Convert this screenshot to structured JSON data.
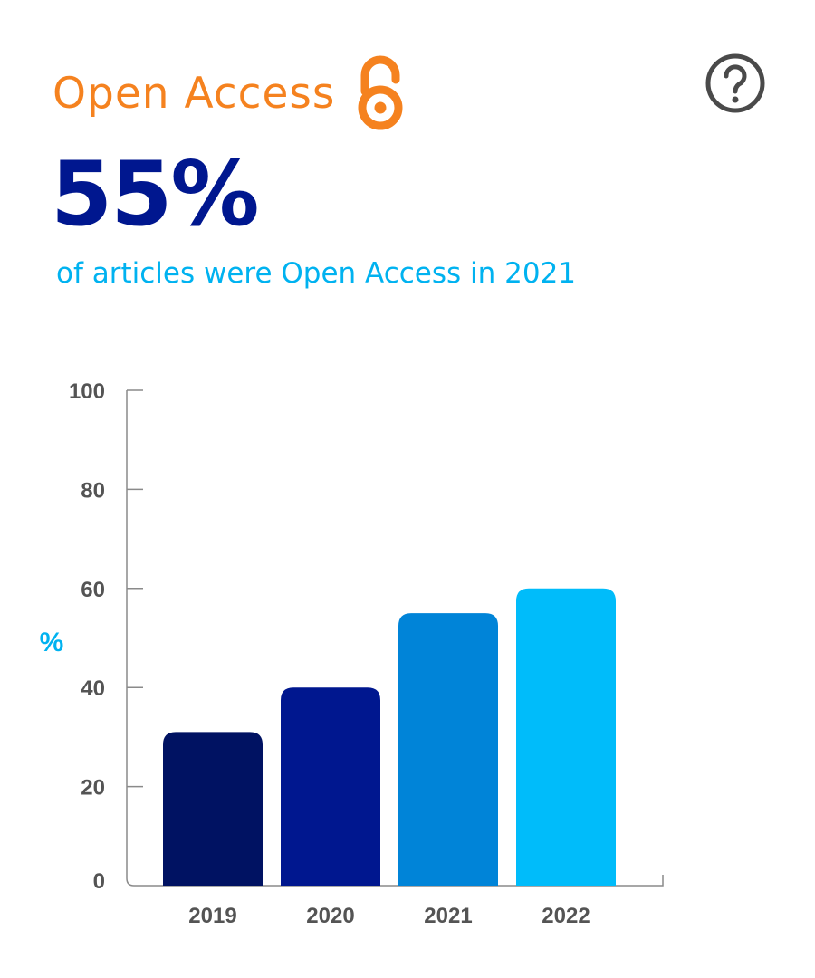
{
  "header": {
    "title": "Open Access",
    "title_color": "#f5821f",
    "icon": "open-access-lock-icon",
    "help_icon": "question-circle-icon"
  },
  "highlight": {
    "value": "55%",
    "value_color": "#00178f",
    "caption": "of articles were Open Access in 2021",
    "caption_color": "#00b2f0"
  },
  "chart_data": {
    "type": "bar",
    "categories": [
      "2019",
      "2020",
      "2021",
      "2022"
    ],
    "values": [
      31,
      40,
      55,
      60
    ],
    "colors": [
      "#001262",
      "#00178f",
      "#0084d8",
      "#00bcfa"
    ],
    "title": "",
    "xlabel": "",
    "ylabel": "%",
    "ylim": [
      0,
      100
    ],
    "yticks": [
      0,
      20,
      40,
      60,
      80,
      100
    ],
    "grid": false,
    "legend": "none"
  }
}
